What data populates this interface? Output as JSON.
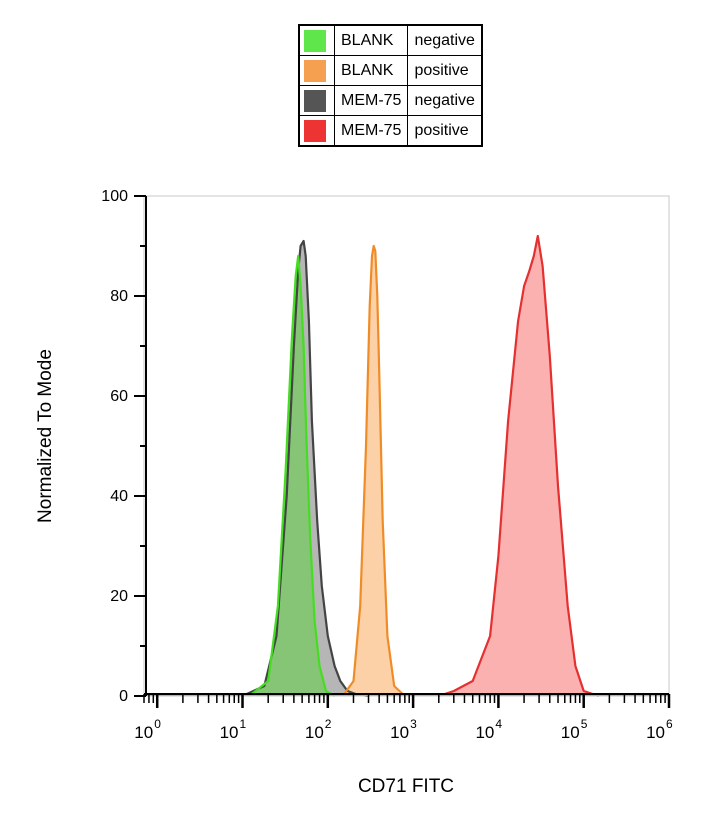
{
  "legend": [
    {
      "name": "BLANK",
      "status": "negative",
      "color": "#5ee64a"
    },
    {
      "name": "BLANK",
      "status": "positive",
      "color": "#f5a050"
    },
    {
      "name": "MEM-75",
      "status": "negative",
      "color": "#555555"
    },
    {
      "name": "MEM-75",
      "status": "positive",
      "color": "#ee3333"
    }
  ],
  "chart_data": {
    "type": "area",
    "xlabel": "CD71 FITC",
    "ylabel": "Normalized To Mode",
    "x_scale": "log",
    "xlim": [
      0.7,
      1000000
    ],
    "ylim": [
      0,
      100
    ],
    "x_ticks": [
      {
        "base": "10",
        "exp": "0",
        "value": 1
      },
      {
        "base": "10",
        "exp": "1",
        "value": 10
      },
      {
        "base": "10",
        "exp": "2",
        "value": 100
      },
      {
        "base": "10",
        "exp": "3",
        "value": 1000
      },
      {
        "base": "10",
        "exp": "4",
        "value": 10000
      },
      {
        "base": "10",
        "exp": "5",
        "value": 100000
      },
      {
        "base": "10",
        "exp": "6",
        "value": 1000000
      }
    ],
    "y_ticks": [
      "0",
      "20",
      "40",
      "60",
      "80",
      "100"
    ],
    "series": [
      {
        "name": "MEM-75 negative",
        "stroke": "#444444",
        "fill": "#a9a9a9",
        "x": [
          10,
          18,
          25,
          33,
          40,
          45,
          48,
          52,
          55,
          60,
          65,
          75,
          85,
          100,
          120,
          140,
          170,
          220,
          300
        ],
        "y": [
          0,
          2,
          12,
          40,
          70,
          85,
          90,
          91,
          88,
          75,
          55,
          35,
          22,
          12,
          6,
          3,
          1,
          0.3,
          0
        ]
      },
      {
        "name": "BLANK negative",
        "stroke": "#44dd22",
        "fill": "#7ec86a",
        "x": [
          12,
          20,
          26,
          32,
          38,
          42,
          45,
          48,
          52,
          56,
          62,
          70,
          80,
          95,
          120
        ],
        "y": [
          0,
          3,
          18,
          45,
          72,
          84,
          88,
          82,
          70,
          52,
          32,
          15,
          6,
          1,
          0
        ]
      },
      {
        "name": "BLANK positive",
        "stroke": "#f08c28",
        "fill": "#fcc998",
        "x": [
          150,
          200,
          240,
          280,
          310,
          330,
          345,
          360,
          380,
          400,
          440,
          500,
          600,
          800
        ],
        "y": [
          0,
          3,
          18,
          50,
          78,
          88,
          90,
          89,
          80,
          65,
          35,
          12,
          2,
          0
        ]
      },
      {
        "name": "MEM-75 positive",
        "stroke": "#e53030",
        "fill": "#fca3a3",
        "x": [
          2000,
          3000,
          5000,
          8000,
          10000,
          13000,
          17000,
          20000,
          23000,
          26000,
          29000,
          33000,
          40000,
          50000,
          65000,
          80000,
          100000,
          150000
        ],
        "y": [
          0,
          1,
          3,
          12,
          28,
          55,
          75,
          82,
          85,
          88,
          92,
          86,
          68,
          42,
          18,
          6,
          1,
          0
        ]
      }
    ]
  }
}
